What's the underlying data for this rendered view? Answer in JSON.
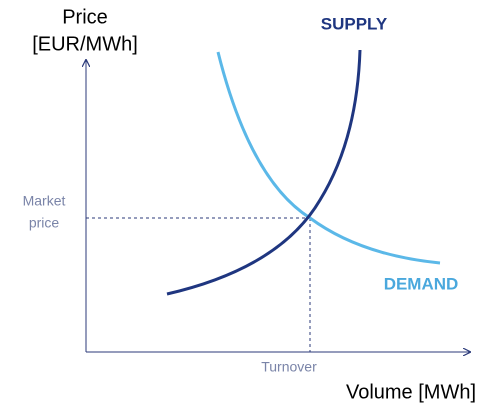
{
  "y_axis": {
    "label_lines": [
      "Price",
      "[EUR/MWh]"
    ]
  },
  "x_axis": {
    "label": "Volume [MWh]"
  },
  "curves": {
    "supply": "SUPPLY",
    "demand": "DEMAND"
  },
  "equilibrium": {
    "price_lines": [
      "Market",
      "price"
    ],
    "volume": "Turnover"
  }
}
